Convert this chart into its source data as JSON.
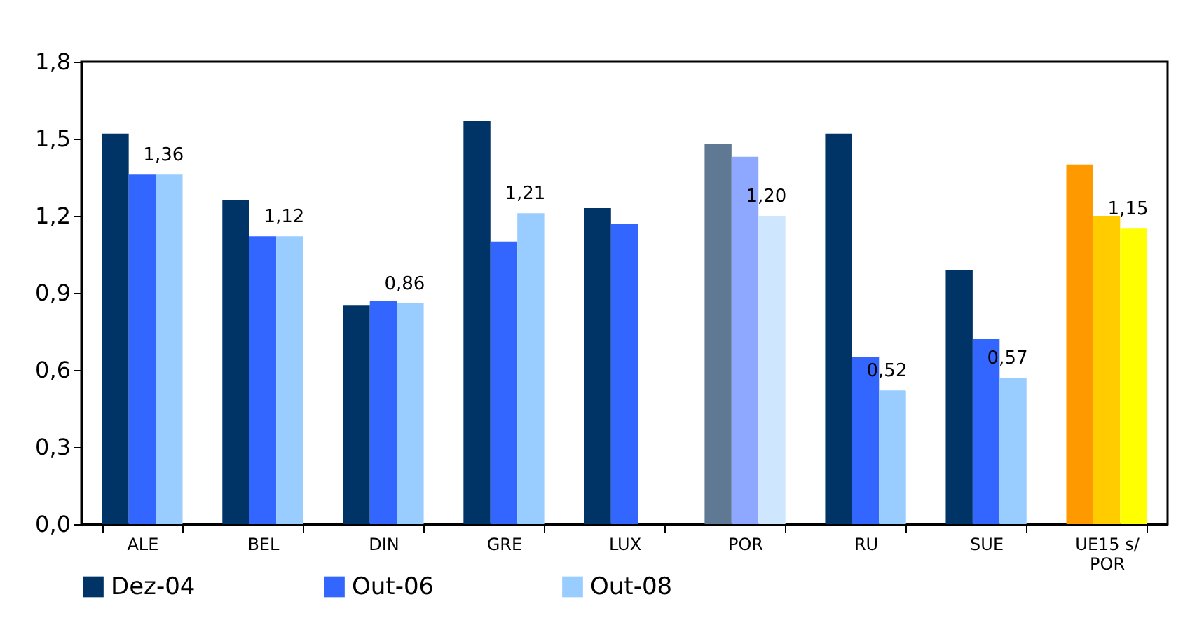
{
  "chart_data": {
    "type": "bar",
    "categories": [
      "ALE",
      "BEL",
      "DIN",
      "GRE",
      "LUX",
      "POR",
      "RU",
      "SUE",
      "UE15 s/ POR"
    ],
    "series": [
      {
        "name": "Dez-04",
        "color": "#003366",
        "values": [
          1.52,
          1.26,
          0.85,
          1.57,
          1.23,
          1.48,
          1.52,
          0.99,
          1.4
        ],
        "colors": [
          "#003366",
          "#003366",
          "#003366",
          "#003366",
          "#003366",
          "#5f7893",
          "#003366",
          "#003366",
          "#ff9900"
        ]
      },
      {
        "name": "Out-06",
        "color": "#3366ff",
        "values": [
          1.36,
          1.12,
          0.87,
          1.1,
          1.17,
          1.43,
          0.65,
          0.72,
          1.2
        ],
        "colors": [
          "#3366ff",
          "#3366ff",
          "#3366ff",
          "#3366ff",
          "#3366ff",
          "#8fa8ff",
          "#3366ff",
          "#3366ff",
          "#ffcc00"
        ]
      },
      {
        "name": "Out-08",
        "color": "#99ccff",
        "values": [
          1.36,
          1.12,
          0.86,
          1.21,
          null,
          1.2,
          0.52,
          0.57,
          1.15
        ],
        "colors": [
          "#99ccff",
          "#99ccff",
          "#99ccff",
          "#99ccff",
          "#99ccff",
          "#cfe6ff",
          "#99ccff",
          "#99ccff",
          "#ffff00"
        ],
        "value_labels": [
          "1,36",
          "1,12",
          "0,86",
          "1,21",
          null,
          "1,20",
          "0,52",
          "0,57",
          "1,15"
        ]
      }
    ],
    "ylim": [
      0,
      1.8
    ],
    "yticks": [
      {
        "value": 0,
        "label": "0,0"
      },
      {
        "value": 0.3,
        "label": "0,3"
      },
      {
        "value": 0.6,
        "label": "0,6"
      },
      {
        "value": 0.9,
        "label": "0,9"
      },
      {
        "value": 1.2,
        "label": "1,2"
      },
      {
        "value": 1.5,
        "label": "1,5"
      },
      {
        "value": 1.8,
        "label": "1,8"
      }
    ],
    "grid": false,
    "legend": "bottom"
  }
}
